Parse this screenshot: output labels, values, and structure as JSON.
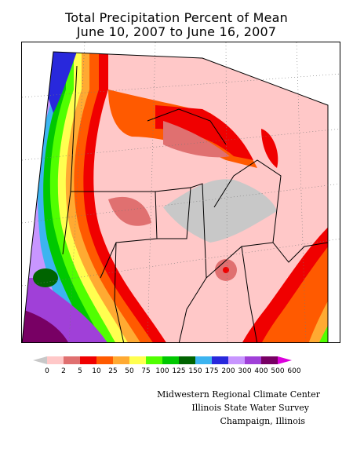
{
  "title_line1": "Total Precipitation Percent of Mean",
  "title_line2": "June 10, 2007 to June 16, 2007",
  "legend": {
    "labels": [
      "0",
      "2",
      "5",
      "10",
      "25",
      "50",
      "75",
      "100",
      "125",
      "150",
      "175",
      "200",
      "300",
      "400",
      "500",
      "600"
    ],
    "colors": [
      "#c8c8c8",
      "#ffc8c8",
      "#e07070",
      "#f00000",
      "#ff5a00",
      "#ffaa32",
      "#ffff50",
      "#50ff00",
      "#00c800",
      "#006400",
      "#3cb4f0",
      "#2828dc",
      "#c896ff",
      "#a040d8",
      "#780064",
      "#dc00dc"
    ]
  },
  "credits": {
    "line1": "Midwestern Regional Climate Center",
    "line2": "Illinois State Water Survey",
    "line3": "Champaign, Illinois"
  }
}
